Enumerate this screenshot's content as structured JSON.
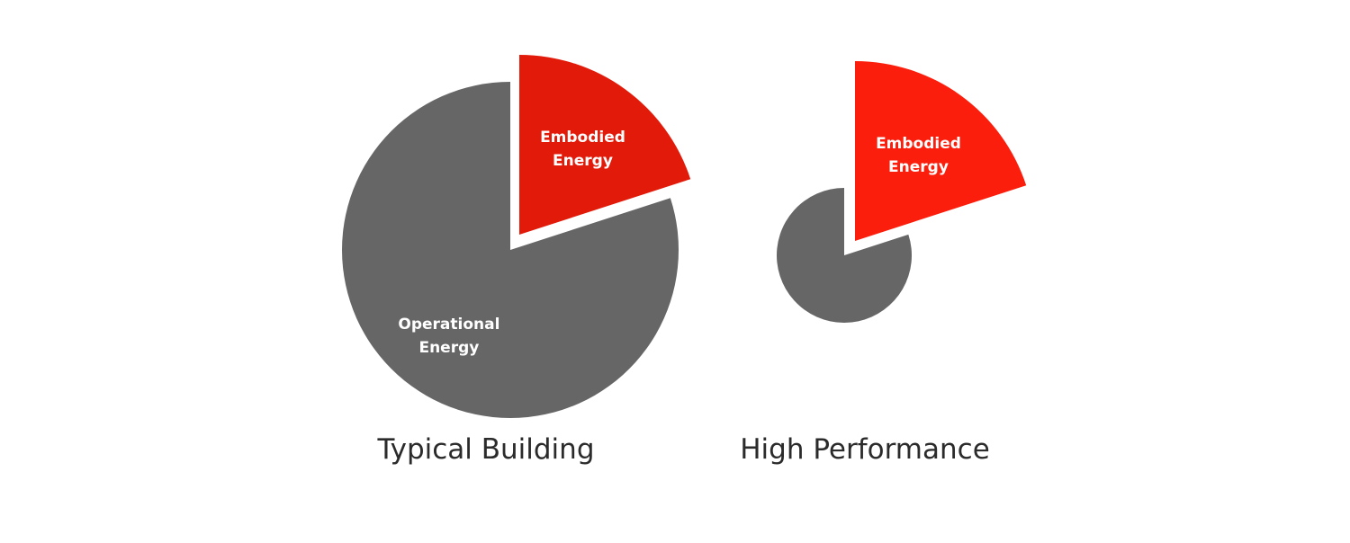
{
  "chart_data": [
    {
      "type": "pie",
      "title": "Typical Building",
      "slices": [
        {
          "label": [
            "Embodied",
            "Energy"
          ],
          "value": 20,
          "exploded": true,
          "color": "#e21a0a"
        },
        {
          "label": [
            "Operational",
            "Energy"
          ],
          "value": 80,
          "exploded": false,
          "color": "#666666"
        }
      ]
    },
    {
      "type": "pie",
      "title": "High Performance",
      "slices": [
        {
          "label": [
            "Embodied",
            "Energy"
          ],
          "value": 20,
          "exploded": true,
          "color": "#fb1e0c"
        },
        {
          "label": [],
          "value": 80,
          "exploded": false,
          "color": "#666666"
        }
      ]
    }
  ]
}
